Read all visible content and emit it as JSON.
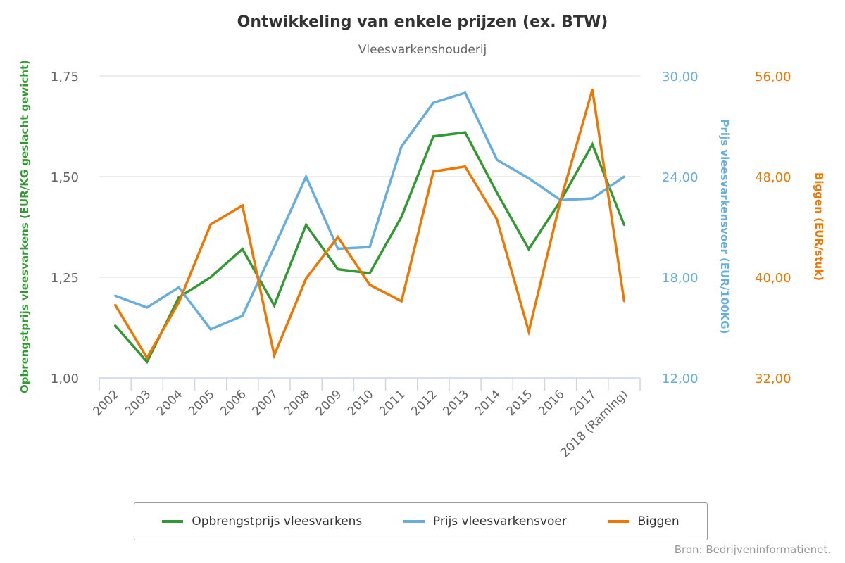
{
  "chart_data": {
    "type": "line",
    "title": "Ontwikkeling van enkele prijzen (ex. BTW)",
    "subtitle": "Vleesvarkenshouderij",
    "categories": [
      "2002",
      "2003",
      "2004",
      "2005",
      "2006",
      "2007",
      "2008",
      "2009",
      "2010",
      "2011",
      "2012",
      "2013",
      "2014",
      "2015",
      "2016",
      "2017",
      "2018 (Raming)"
    ],
    "axes": [
      {
        "id": "y1",
        "title": "Opbrengstprijs vleesvarkens (EUR/KG geslacht gewicht)",
        "position": "left",
        "range": [
          1.0,
          1.75
        ],
        "ticks": [
          "1,00",
          "1,25",
          "1,50",
          "1,75"
        ],
        "color": "#339933"
      },
      {
        "id": "y2",
        "title": "Prijs vleesvarkensvoer (EUR/100KG)",
        "position": "right",
        "range": [
          12,
          30
        ],
        "ticks": [
          "12,00",
          "18,00",
          "24,00",
          "30,00"
        ],
        "color": "#66AEDD"
      },
      {
        "id": "y3",
        "title": "Biggen (EUR/stuk)",
        "position": "right-outer",
        "range": [
          32,
          56
        ],
        "ticks": [
          "32,00",
          "40,00",
          "48,00",
          "56,00"
        ],
        "color": "#EE7700"
      }
    ],
    "series": [
      {
        "name": "Opbrengstprijs vleesvarkens",
        "axis": "y1",
        "color": "#339933",
        "values": [
          1.13,
          1.04,
          1.2,
          1.25,
          1.32,
          1.18,
          1.38,
          1.27,
          1.26,
          1.4,
          1.6,
          1.61,
          1.46,
          1.32,
          1.44,
          1.58,
          1.38
        ]
      },
      {
        "name": "Prijs vleesvarkensvoer",
        "axis": "y2",
        "color": "#66AEDD",
        "values": [
          16.9,
          16.2,
          17.4,
          14.9,
          15.7,
          19.8,
          24.0,
          19.7,
          19.8,
          25.8,
          28.4,
          29.0,
          25.0,
          23.9,
          22.6,
          22.7,
          24.0
        ]
      },
      {
        "name": "Biggen",
        "axis": "y3",
        "color": "#EE7700",
        "values": [
          37.8,
          33.6,
          38.0,
          44.2,
          45.7,
          33.8,
          39.9,
          43.2,
          39.4,
          38.1,
          48.4,
          48.8,
          44.6,
          35.7,
          46.1,
          54.9,
          38.1
        ]
      }
    ],
    "grid": true,
    "legend": "bottom"
  },
  "source": "Bron: Bedrijveninformatienet."
}
